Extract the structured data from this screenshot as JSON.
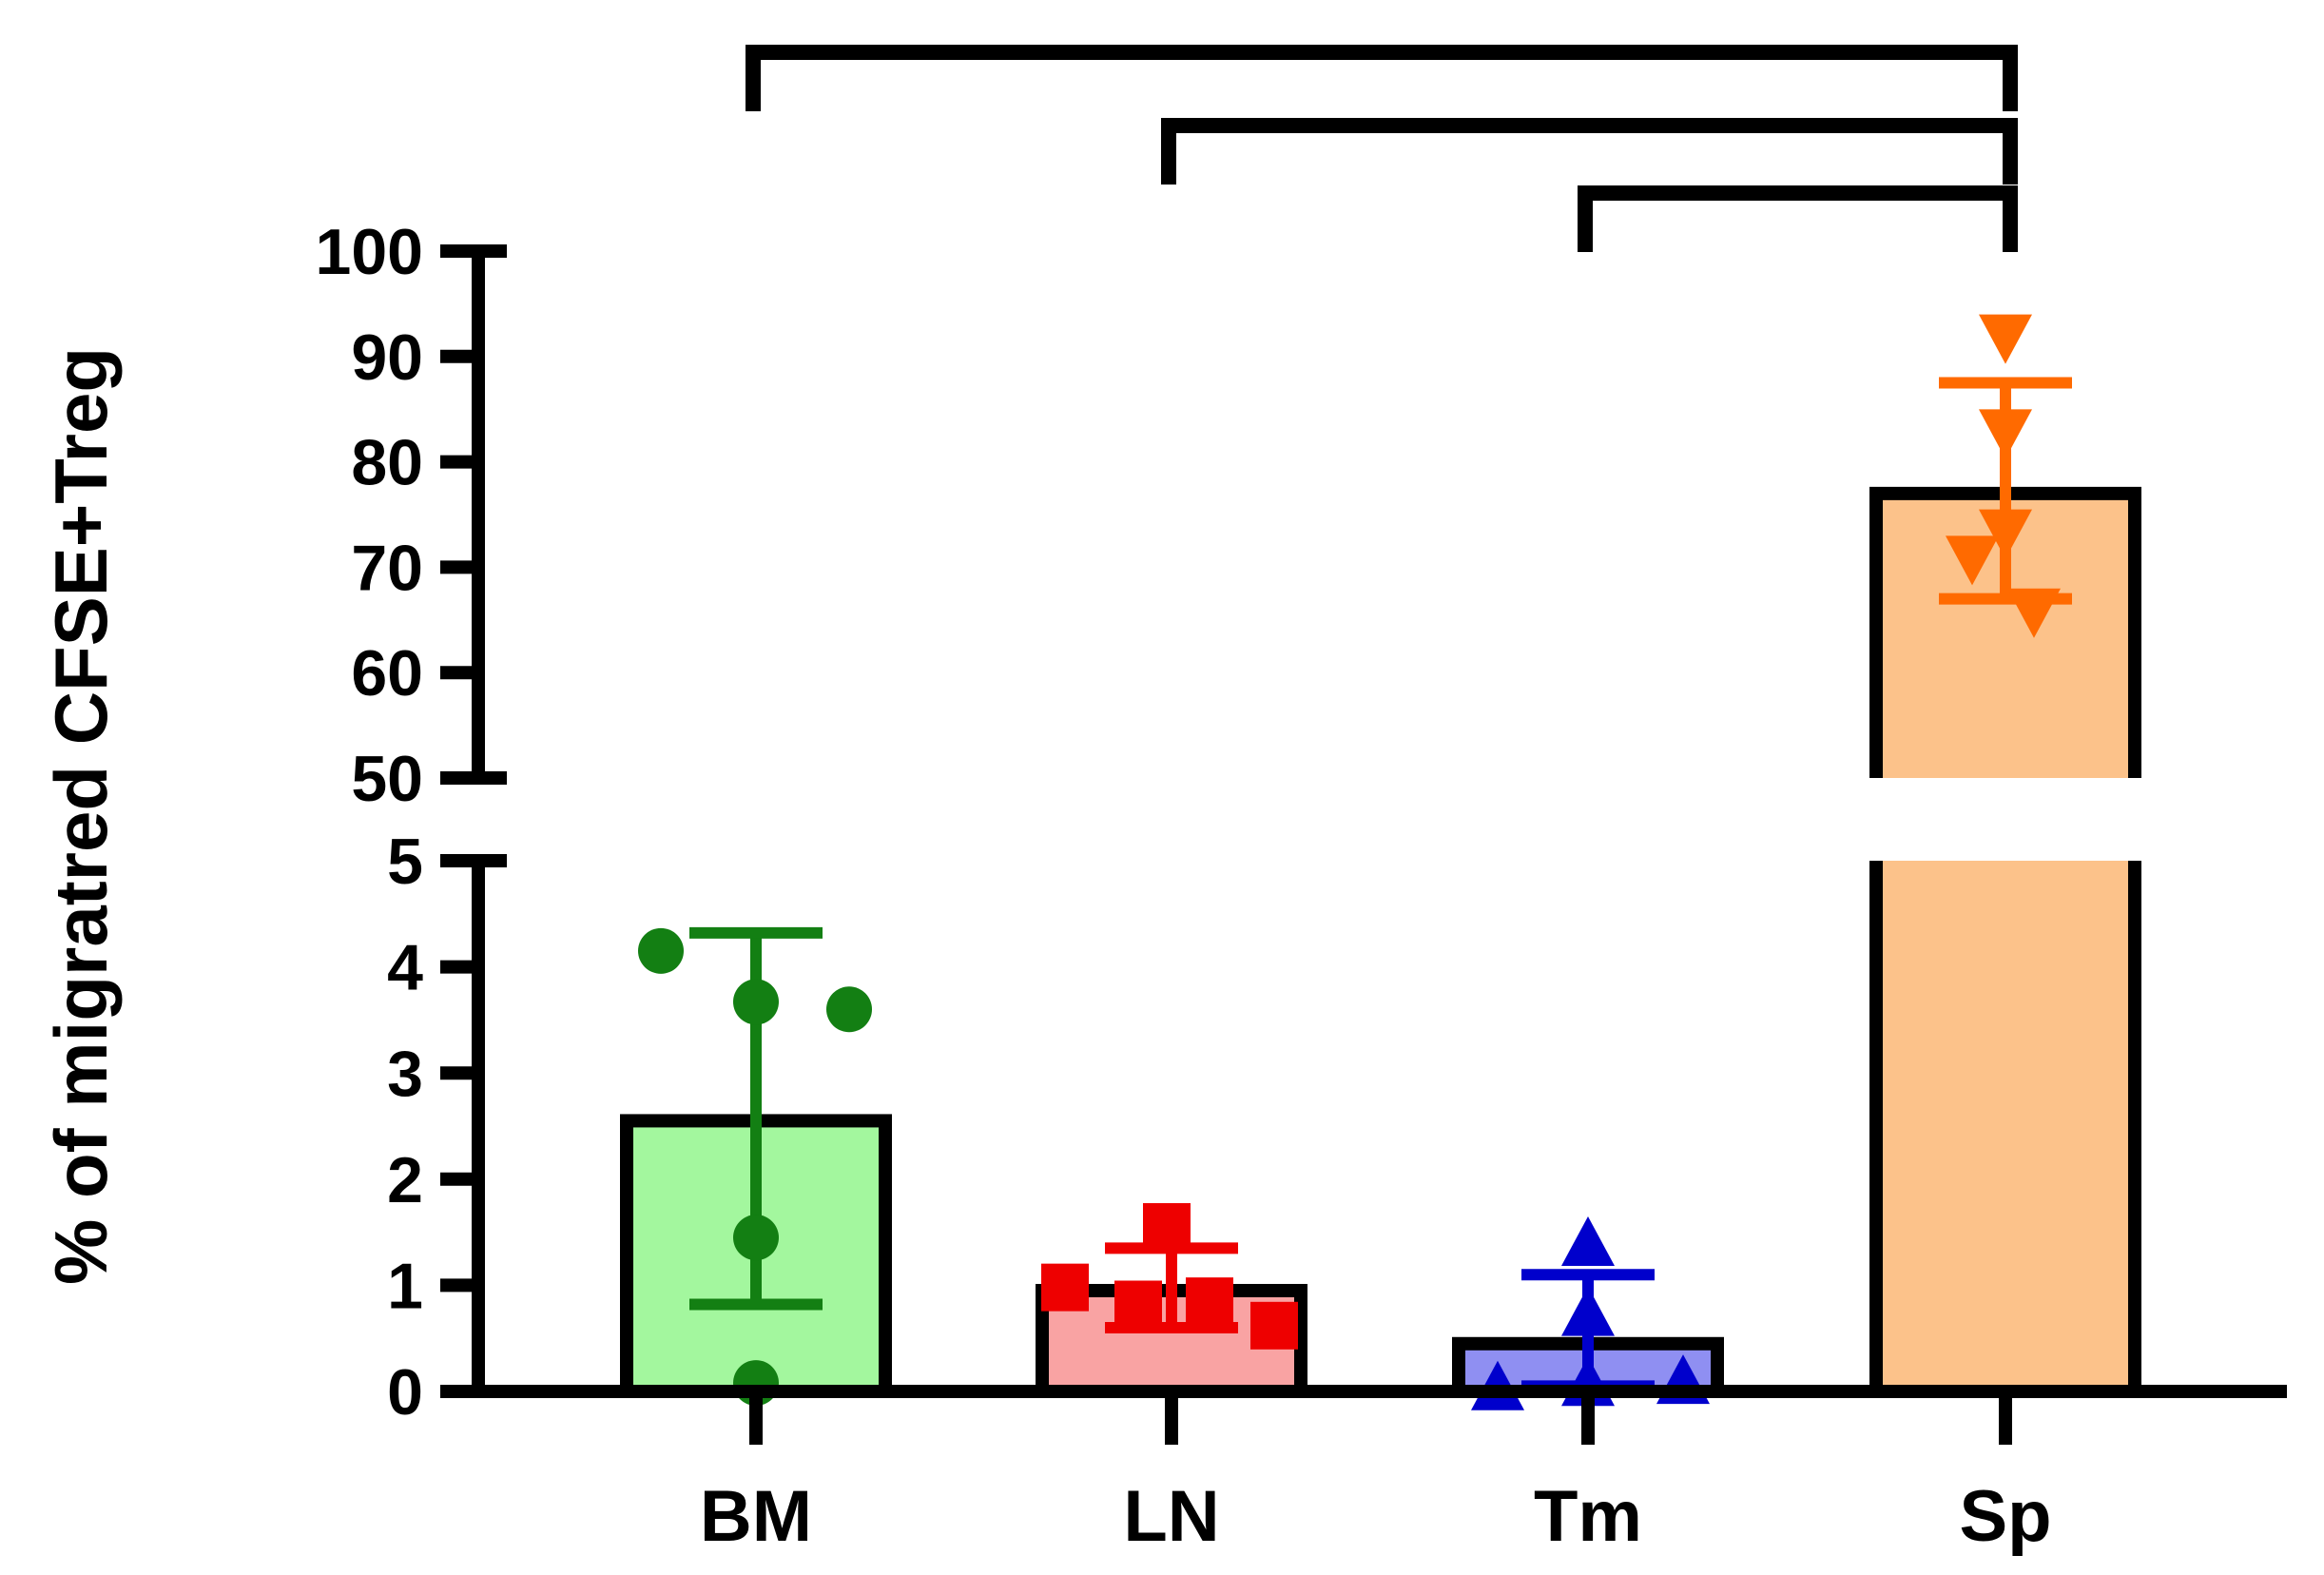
{
  "chart_data": {
    "type": "bar",
    "title": "",
    "xlabel": "",
    "ylabel": "% of migratred CFSE+Treg",
    "categories": [
      "BM",
      "LN",
      "Tm",
      "Sp"
    ],
    "bar_colors": [
      "#a3f79e",
      "#f9a3a3",
      "#8f8ff2",
      "#fcc28a"
    ],
    "point_colors": [
      "#137f13",
      "#ee0000",
      "#0000cc",
      "#ff6a00"
    ],
    "point_markers": [
      "circle",
      "square",
      "triangle-up",
      "triangle-down"
    ],
    "bar_edge_color": "#000000",
    "means": [
      2.55,
      0.95,
      0.45,
      77
    ],
    "error_bars": [
      {
        "low": 0.82,
        "high": 4.32
      },
      {
        "low": 0.6,
        "high": 1.35
      },
      {
        "low": 0.05,
        "high": 1.1
      },
      {
        "low": 67,
        "high": 87.5
      }
    ],
    "points": [
      [
        4.15,
        3.67,
        3.6,
        1.45,
        0.08
      ],
      [
        1.55,
        0.98,
        0.85,
        0.82,
        0.62
      ],
      [
        1.38,
        0.72,
        0.08,
        0.06,
        0.02
      ],
      [
        92,
        83,
        73.5,
        71,
        66
      ]
    ],
    "y_axis_segments": [
      {
        "range": [
          0,
          5
        ],
        "ticks": [
          0,
          1,
          2,
          3,
          4,
          5
        ]
      },
      {
        "range": [
          50,
          100
        ],
        "ticks": [
          50,
          60,
          70,
          80,
          90,
          100
        ]
      }
    ],
    "significance_brackets": [
      {
        "from": "BM",
        "to": "Sp"
      },
      {
        "from": "LN",
        "to": "Sp"
      },
      {
        "from": "Tm",
        "to": "Sp"
      }
    ],
    "grid": false,
    "legend": "none"
  }
}
